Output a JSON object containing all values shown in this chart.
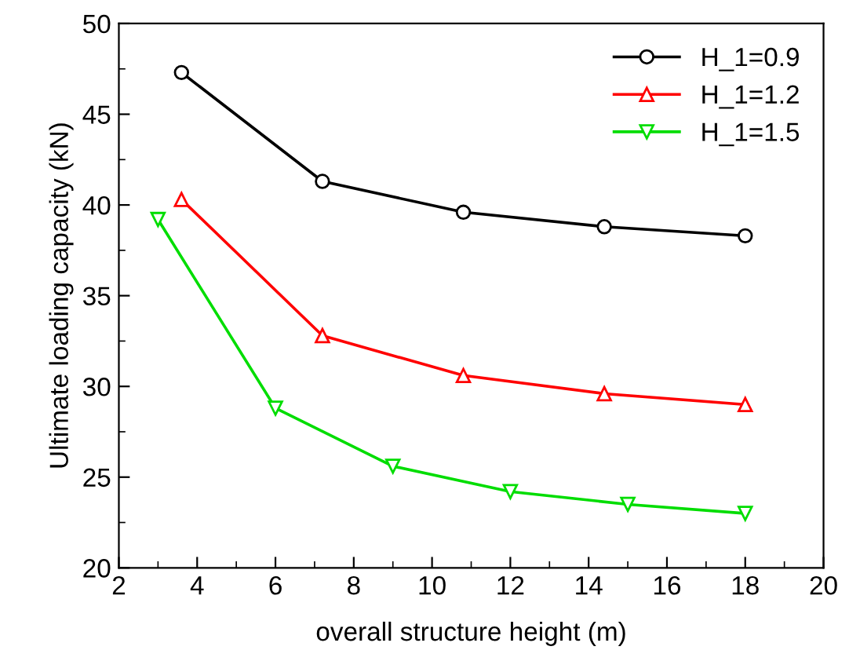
{
  "chart_data": {
    "type": "line",
    "xlabel": "overall structure height (m)",
    "ylabel": "Ultimate loading capacity (kN)",
    "xlim": [
      2,
      20
    ],
    "xticks": [
      2,
      4,
      6,
      8,
      10,
      12,
      14,
      16,
      18,
      20
    ],
    "ylim": [
      20,
      50
    ],
    "yticks": [
      20,
      25,
      30,
      35,
      40,
      45,
      50
    ],
    "line_style": "solid",
    "grid": false,
    "legend": "top right",
    "series": [
      {
        "name": "H_1=0.9",
        "color": "#000000",
        "marker": "circle",
        "x": [
          3.6,
          7.2,
          10.8,
          14.4,
          18
        ],
        "values": [
          47.3,
          41.3,
          39.6,
          38.8,
          38.3
        ]
      },
      {
        "name": "H_1=1.2",
        "color": "#ff0000",
        "marker": "triangle",
        "x": [
          3.6,
          7.2,
          10.8,
          14.4,
          18
        ],
        "values": [
          40.3,
          32.8,
          30.6,
          29.6,
          29.0
        ]
      },
      {
        "name": "H_1=1.5",
        "color": "#00dd00",
        "marker": "triangle_down",
        "x": [
          3,
          6,
          9,
          12,
          15,
          18
        ],
        "values": [
          39.2,
          28.8,
          25.6,
          24.2,
          23.5,
          23.0
        ]
      }
    ]
  }
}
